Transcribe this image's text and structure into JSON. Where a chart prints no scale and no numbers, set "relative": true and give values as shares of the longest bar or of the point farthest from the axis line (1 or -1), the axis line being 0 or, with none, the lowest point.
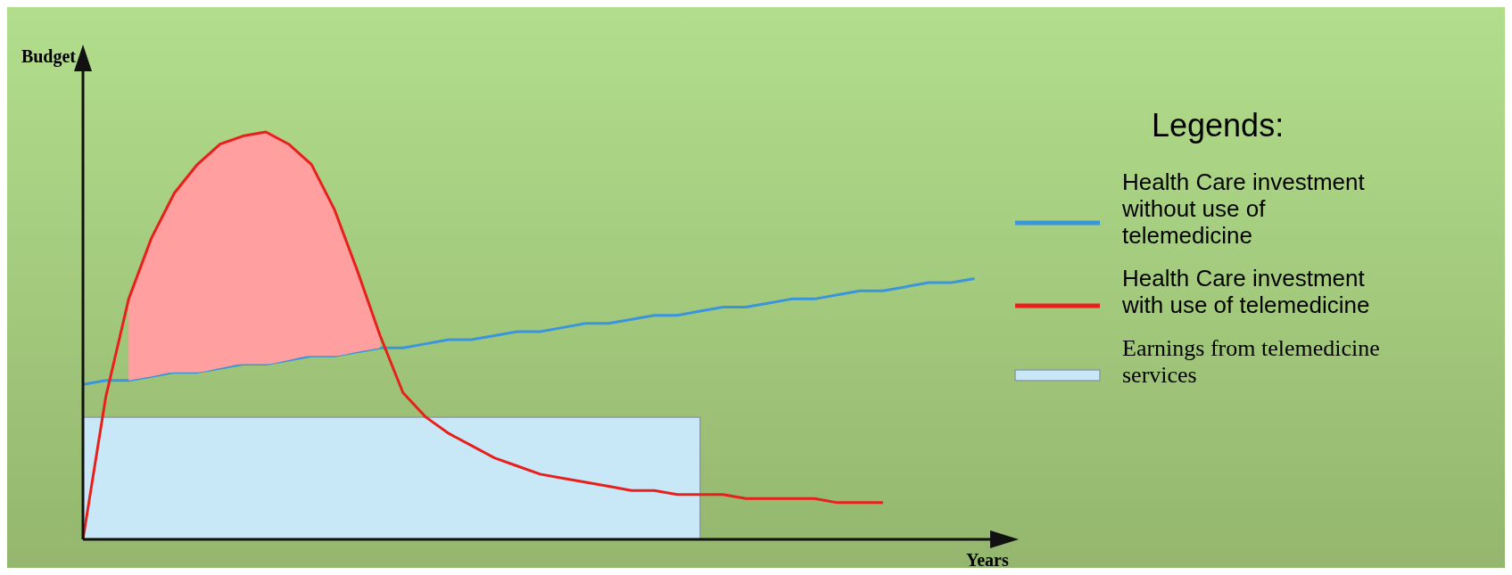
{
  "chart_data": {
    "type": "line",
    "ylabel": "Budget",
    "xlabel": "Years",
    "relative": true,
    "legend": "right",
    "legend_title": "Legends:",
    "categories": [
      null,
      null,
      null,
      null,
      null,
      null,
      null,
      null,
      null,
      null,
      null,
      null,
      null,
      null,
      null,
      null,
      null,
      null,
      null,
      null,
      null,
      null,
      null,
      null,
      null,
      null,
      null,
      null,
      null,
      null,
      null,
      null,
      null,
      null,
      null,
      null,
      null,
      null,
      null,
      null,
      null
    ],
    "series": [
      {
        "name": "Health Care investment without use of telemedicine",
        "color": "#3a95dc",
        "values": [
          0.38,
          0.39,
          0.39,
          0.4,
          0.41,
          0.41,
          0.42,
          0.43,
          0.43,
          0.44,
          0.45,
          0.45,
          0.46,
          0.47,
          0.47,
          0.48,
          0.49,
          0.49,
          0.5,
          0.51,
          0.51,
          0.52,
          0.53,
          0.53,
          0.54,
          0.55,
          0.55,
          0.56,
          0.57,
          0.57,
          0.58,
          0.59,
          0.59,
          0.6,
          0.61,
          0.61,
          0.62,
          0.63,
          0.63,
          0.64,
          null
        ]
      },
      {
        "name": "Health Care investment with use of telemedicine",
        "color": "#e8201c",
        "values": [
          0,
          0.35,
          0.59,
          0.74,
          0.85,
          0.92,
          0.97,
          0.99,
          1,
          0.97,
          0.92,
          0.81,
          0.66,
          0.5,
          0.36,
          0.3,
          0.26,
          0.23,
          0.2,
          0.18,
          0.16,
          0.15,
          0.14,
          0.13,
          0.12,
          0.12,
          0.11,
          0.11,
          0.11,
          0.1,
          0.1,
          0.1,
          0.1,
          0.09,
          0.09,
          0.09,
          null,
          null,
          null,
          null,
          null
        ],
        "lower": [
          null,
          null,
          0.39,
          0.4,
          0.41,
          0.41,
          0.42,
          0.43,
          0.43,
          0.44,
          0.45,
          0.45,
          0.46,
          0.47,
          null,
          null,
          null,
          null,
          null,
          null,
          null,
          null,
          null,
          null,
          null,
          null,
          null,
          null,
          null,
          null,
          null,
          null,
          null,
          null,
          null,
          null,
          null,
          null,
          null,
          null,
          null
        ],
        "upper": [
          null,
          null,
          0.59,
          0.74,
          0.85,
          0.92,
          0.97,
          0.99,
          1,
          0.97,
          0.92,
          0.81,
          0.66,
          0.5,
          null,
          null,
          null,
          null,
          null,
          null,
          null,
          null,
          null,
          null,
          null,
          null,
          null,
          null,
          null,
          null,
          null,
          null,
          null,
          null,
          null,
          null,
          null,
          null,
          null,
          null,
          null
        ]
      },
      {
        "name": "Earnings from telemedicine services",
        "type": "area",
        "color": "#c8e8f8",
        "values": [
          0.3,
          0.3,
          0.3,
          0.3,
          0.3,
          0.3,
          0.3,
          0.3,
          0.3,
          0.3,
          0.3,
          0.3,
          0.3,
          0.3,
          0.3,
          0.3,
          0.3,
          0.3,
          0.3,
          0.3,
          0.3,
          0.3,
          0.3,
          0.3,
          0.3,
          0.3,
          0.3,
          0.3,
          null,
          null,
          null,
          null,
          null,
          null,
          null,
          null,
          null,
          null,
          null,
          null,
          null
        ]
      }
    ]
  }
}
